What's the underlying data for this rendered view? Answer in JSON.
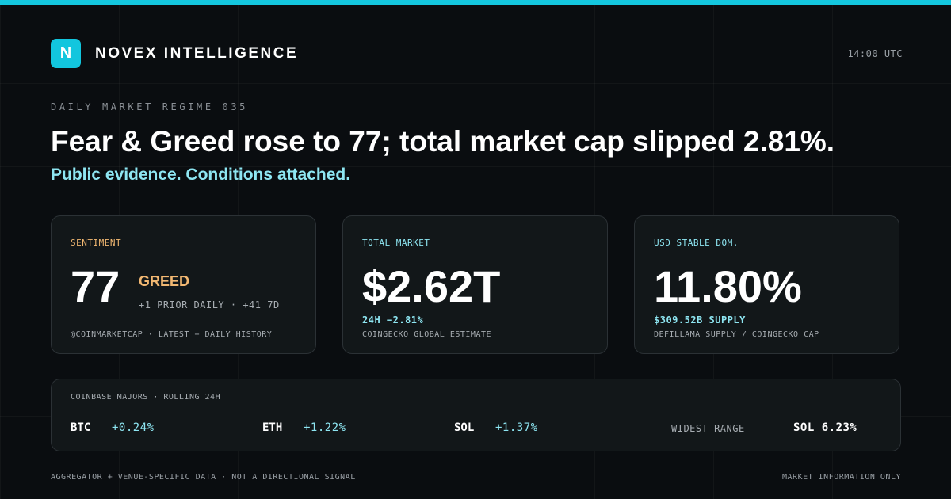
{
  "brand": {
    "logo_letter": "N",
    "name": "NOVEX INTELLIGENCE",
    "time": "14:00 UTC"
  },
  "kicker": "DAILY MARKET REGIME 035",
  "headline": "Fear & Greed rose to 77; total market cap slipped 2.81%.",
  "subline": "Public evidence. Conditions attached.",
  "cards": {
    "sentiment": {
      "label": "SENTIMENT",
      "value": "77",
      "state": "GREED",
      "delta": "+1 PRIOR DAILY · +41 7D",
      "source": "@COINMARKETCAP · LATEST + DAILY HISTORY"
    },
    "market": {
      "label": "TOTAL MARKET",
      "value": "$2.62T",
      "change": "24H −2.81%",
      "source": "COINGECKO GLOBAL ESTIMATE"
    },
    "stable": {
      "label": "USD STABLE DOM.",
      "value": "11.80%",
      "supply": "$309.52B SUPPLY",
      "source": "DEFILLAMA SUPPLY / COINGECKO CAP"
    }
  },
  "majors": {
    "label": "COINBASE MAJORS · ROLLING 24H",
    "items": [
      {
        "symbol": "BTC",
        "change": "+0.24%"
      },
      {
        "symbol": "ETH",
        "change": "+1.22%"
      },
      {
        "symbol": "SOL",
        "change": "+1.37%"
      }
    ],
    "widest_label": "WIDEST RANGE",
    "widest_value": "SOL 6.23%"
  },
  "footer": {
    "left": "AGGREGATOR + VENUE-SPECIFIC DATA · NOT A DIRECTIONAL SIGNAL",
    "right": "MARKET INFORMATION ONLY"
  },
  "colors": {
    "accent": "#14c7df",
    "accent_light": "#8ee6f2",
    "greed": "#f2b872",
    "background": "#0a0d10",
    "card": "#121719"
  }
}
